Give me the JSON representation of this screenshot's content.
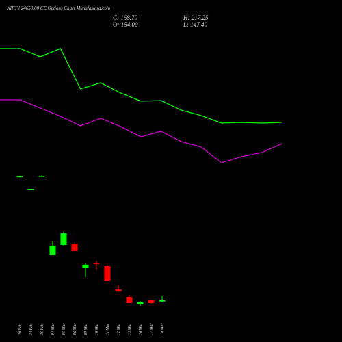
{
  "chart_data": [
    {
      "type": "candlestick",
      "title": "NIFTY 24650.00 CE Options Chart Munafasutra.com",
      "summary": [
        "C: 168.70",
        "O: 154.00",
        "H: 217.25",
        "L: 147.40"
      ],
      "categories": [
        "20 Feb",
        "24 Feb",
        "25 Feb",
        "04 Mar",
        "05 Mar",
        "06 Mar",
        "09 Mar",
        "10 Mar",
        "11 Mar",
        "12 Mar",
        "13 Mar",
        "16 Mar",
        "17 Mar",
        "18 Mar"
      ],
      "open": [
        1610,
        1460,
        1620,
        696,
        816,
        832,
        544,
        608,
        568,
        296,
        208,
        120,
        168,
        154.0
      ],
      "close": [
        1620,
        1468,
        1624,
        808,
        952,
        744,
        584,
        592,
        392,
        272,
        136,
        152,
        136,
        168.7
      ],
      "high": [
        1625,
        1470,
        1628,
        864,
        976,
        840,
        600,
        632,
        584,
        344,
        224,
        160,
        176,
        217.25
      ],
      "low": [
        1605,
        1458,
        1618,
        696,
        800,
        744,
        440,
        520,
        392,
        264,
        136,
        104,
        120,
        147.4
      ],
      "up_color": "#00ff00",
      "down_color": "#ff0000",
      "ylim": [
        0,
        3680
      ]
    },
    {
      "type": "line",
      "series": [
        {
          "color": "#00ff00",
          "values": [
            3112,
            3112,
            3016,
            3112,
            2640,
            2712,
            2592,
            2496,
            2504,
            2392,
            2328,
            2240,
            2248,
            2240,
            2248
          ]
        },
        {
          "color": "#cc00cc",
          "values": [
            2512,
            2512,
            2416,
            2320,
            2208,
            2296,
            2200,
            2080,
            2144,
            2024,
            1960,
            1776,
            1848,
            1896,
            2000
          ]
        }
      ],
      "ylim": [
        0,
        3680
      ]
    }
  ]
}
